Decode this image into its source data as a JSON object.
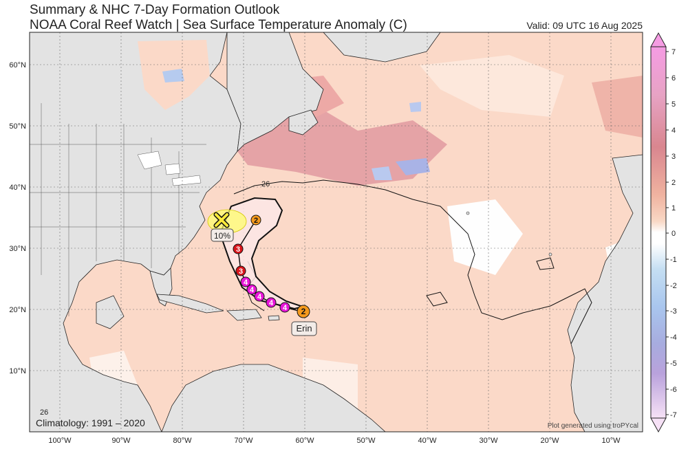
{
  "header": {
    "title": "Summary & NHC 7-Day Formation Outlook",
    "subtitle": "NOAA Coral Reef Watch | Sea Surface Temperature Anomaly (C)",
    "valid": "Valid: 09 UTC 16 Aug 2025"
  },
  "axes": {
    "lon_ticks": [
      "100°W",
      "90°W",
      "80°W",
      "70°W",
      "60°W",
      "50°W",
      "40°W",
      "30°W",
      "20°W",
      "10°W"
    ],
    "lat_ticks": [
      "60°N",
      "50°N",
      "40°N",
      "30°N",
      "20°N",
      "10°N"
    ]
  },
  "colorbar": {
    "ticks": [
      "7",
      "6",
      "5",
      "4",
      "3",
      "2",
      "1",
      "0",
      "-1",
      "-2",
      "-3",
      "-4",
      "-5",
      "-6",
      "-7"
    ],
    "colors": {
      "warm_max": "#f59ce3",
      "warm_mid": "#d9868f",
      "warm_low": "#f6c1a4",
      "neutral": "#ffffff",
      "cool_low": "#c4def2",
      "cool_mid": "#a7acdf",
      "cool_max": "#f6e1f6"
    }
  },
  "storm": {
    "name": "Erin",
    "track_points": [
      "2",
      "4",
      "4",
      "4",
      "4",
      "4",
      "3",
      "3",
      "2"
    ],
    "point_colors": {
      "2": "#f59a1d",
      "3": "#d9141b",
      "4": "#e815d8"
    }
  },
  "outlook": {
    "marker": "X",
    "probability": "10%",
    "area_color": "#ffff66"
  },
  "isotherm_label": "26",
  "footer": {
    "climatology": "Climatology: 1991 – 2020",
    "credit": "Plot generated using troPYcal"
  },
  "colors": {
    "land": "#e3e3e3",
    "ocean_base": "#fbd9c8",
    "border": "#222222"
  }
}
